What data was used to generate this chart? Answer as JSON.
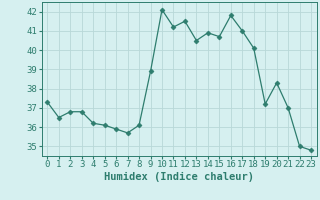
{
  "x": [
    0,
    1,
    2,
    3,
    4,
    5,
    6,
    7,
    8,
    9,
    10,
    11,
    12,
    13,
    14,
    15,
    16,
    17,
    18,
    19,
    20,
    21,
    22,
    23
  ],
  "y": [
    37.3,
    36.5,
    36.8,
    36.8,
    36.2,
    36.1,
    35.9,
    35.7,
    36.1,
    38.9,
    42.1,
    41.2,
    41.5,
    40.5,
    40.9,
    40.7,
    41.8,
    41.0,
    40.1,
    37.2,
    38.3,
    37.0,
    35.0,
    34.8
  ],
  "line_color": "#2e7d6e",
  "marker": "D",
  "marker_size": 2.5,
  "bg_color": "#d6f0f0",
  "grid_color": "#b8d8d8",
  "xlabel": "Humidex (Indice chaleur)",
  "ylim": [
    34.5,
    42.5
  ],
  "xlim": [
    -0.5,
    23.5
  ],
  "yticks": [
    35,
    36,
    37,
    38,
    39,
    40,
    41,
    42
  ],
  "xticks": [
    0,
    1,
    2,
    3,
    4,
    5,
    6,
    7,
    8,
    9,
    10,
    11,
    12,
    13,
    14,
    15,
    16,
    17,
    18,
    19,
    20,
    21,
    22,
    23
  ],
  "tick_fontsize": 6.5,
  "xlabel_fontsize": 7.5
}
